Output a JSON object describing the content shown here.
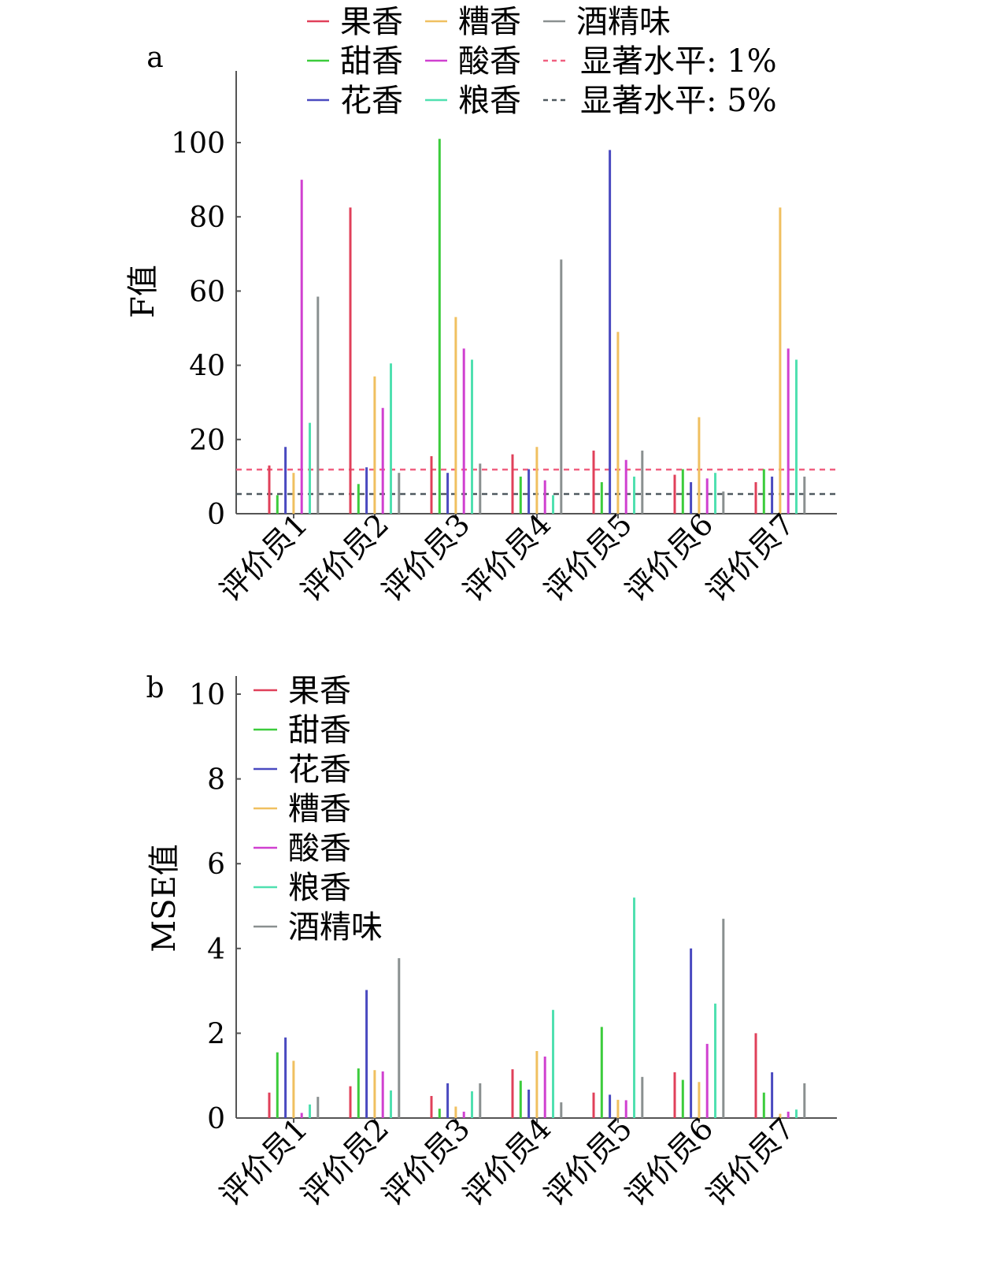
{
  "colors": [
    "#e0405a",
    "#3ccc3c",
    "#4a4ac0",
    "#f0c060",
    "#d040d0",
    "#50e0b0",
    "#8a9090"
  ],
  "threshold_colors": [
    "#f06080",
    "#505a60"
  ],
  "chart_data": [
    {
      "type": "bar",
      "panel_label": "a",
      "ylabel": "F值",
      "xlabel": "",
      "ylim": [
        0,
        120
      ],
      "yticks": [
        0,
        20,
        40,
        60,
        80,
        100
      ],
      "grid": false,
      "legend_placement": "top",
      "categories": [
        "评价员1",
        "评价员2",
        "评价员3",
        "评价员4",
        "评价员5",
        "评价员6",
        "评价员7"
      ],
      "series": [
        {
          "name": "果香",
          "values": [
            13,
            82.5,
            15.5,
            16,
            17,
            10.5,
            8.5
          ]
        },
        {
          "name": "甜香",
          "values": [
            5,
            8,
            101,
            10,
            8.5,
            12,
            12
          ]
        },
        {
          "name": "花香",
          "values": [
            18,
            12.5,
            11,
            12,
            98,
            8.5,
            10
          ]
        },
        {
          "name": "糟香",
          "values": [
            11,
            37,
            53,
            18,
            49,
            26,
            82.5
          ]
        },
        {
          "name": "酸香",
          "values": [
            90,
            28.5,
            44.5,
            9,
            14.5,
            9.5,
            44.5
          ]
        },
        {
          "name": "粮香",
          "values": [
            24.5,
            40.5,
            41.5,
            5,
            10,
            11,
            41.5
          ]
        },
        {
          "name": "酒精味",
          "values": [
            58.5,
            11,
            13.5,
            68.5,
            17,
            6,
            10
          ]
        }
      ],
      "thresholds": [
        {
          "name": "显著水平: 1%",
          "value": 11.9
        },
        {
          "name": "显著水平: 5%",
          "value": 5.3
        }
      ]
    },
    {
      "type": "bar",
      "panel_label": "b",
      "ylabel": "MSE值",
      "xlabel": "",
      "ylim": [
        0,
        10.5
      ],
      "yticks": [
        0,
        2,
        4,
        6,
        8,
        10
      ],
      "grid": false,
      "legend_placement": "top-left",
      "categories": [
        "评价员1",
        "评价员2",
        "评价员3",
        "评价员4",
        "评价员5",
        "评价员6",
        "评价员7"
      ],
      "series": [
        {
          "name": "果香",
          "values": [
            0.6,
            0.75,
            0.52,
            1.15,
            0.6,
            1.08,
            2.0
          ]
        },
        {
          "name": "甜香",
          "values": [
            1.55,
            1.17,
            0.22,
            0.88,
            2.15,
            0.9,
            0.6
          ]
        },
        {
          "name": "花香",
          "values": [
            1.9,
            3.02,
            0.82,
            0.67,
            0.55,
            4.0,
            1.08
          ]
        },
        {
          "name": "糟香",
          "values": [
            1.35,
            1.13,
            0.27,
            1.58,
            0.43,
            0.85,
            0.1
          ]
        },
        {
          "name": "酸香",
          "values": [
            0.12,
            1.1,
            0.15,
            1.45,
            0.42,
            1.75,
            0.15
          ]
        },
        {
          "name": "粮香",
          "values": [
            0.32,
            0.65,
            0.63,
            2.55,
            5.2,
            2.7,
            0.2
          ]
        },
        {
          "name": "酒精味",
          "values": [
            0.5,
            3.77,
            0.82,
            0.37,
            0.97,
            4.7,
            0.82
          ]
        }
      ]
    }
  ]
}
